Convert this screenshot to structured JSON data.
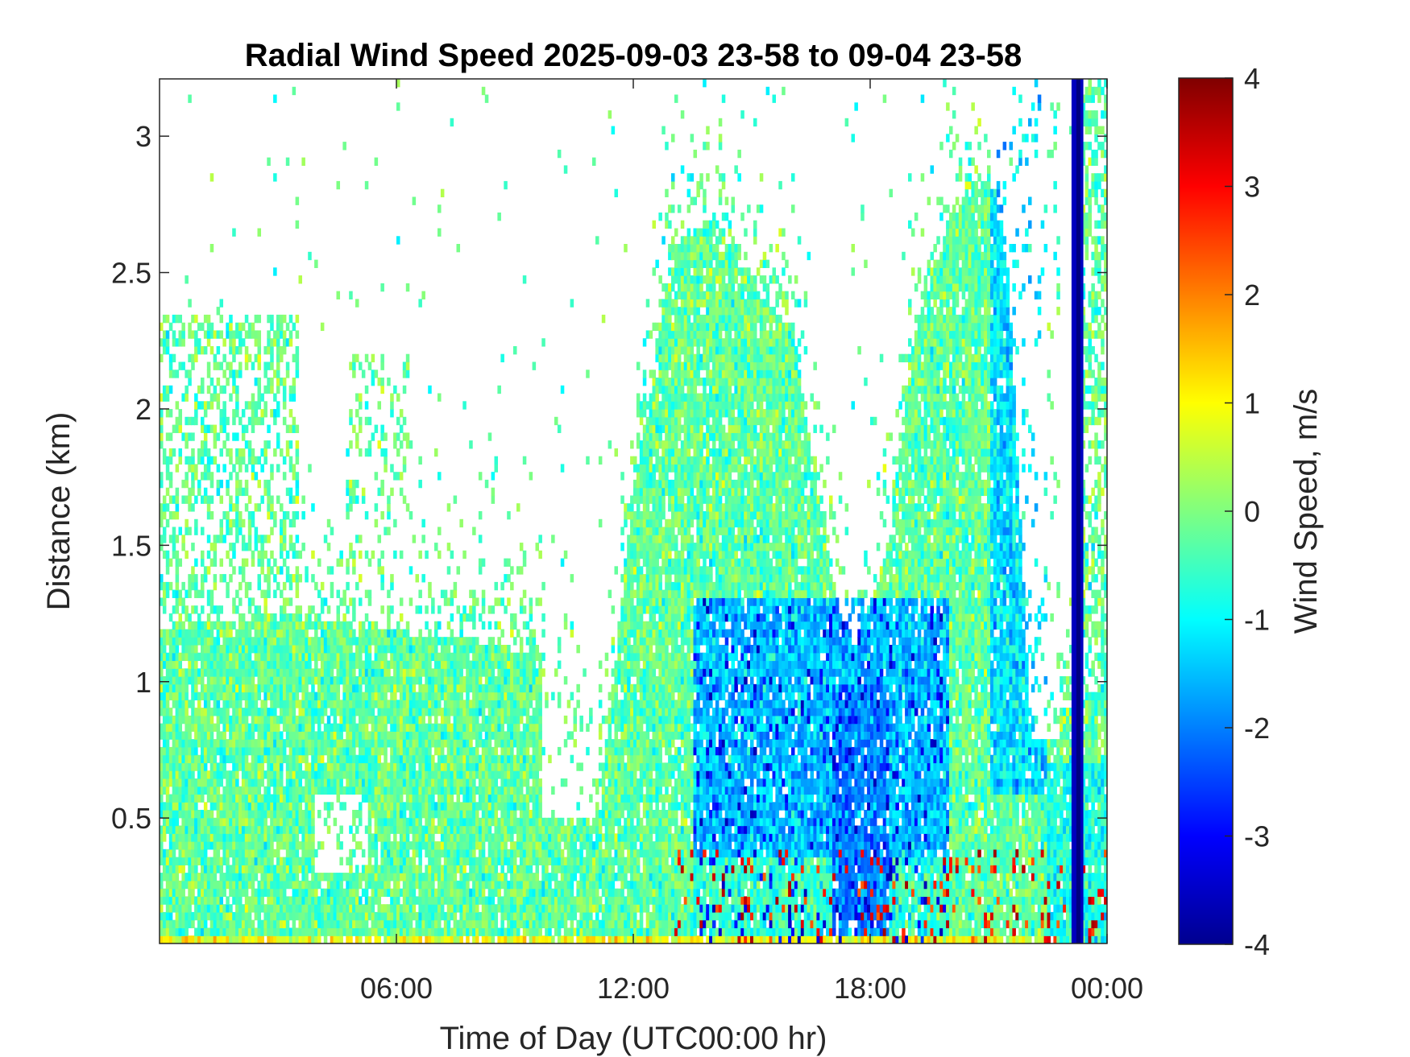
{
  "chart_data": {
    "type": "heatmap",
    "title": "Radial Wind Speed 2025-09-03 23-58 to 09-04 23-58",
    "xlabel": "Time of Day (UTC00:00 hr)",
    "ylabel": "Distance (km)",
    "x_ticks": [
      "06:00",
      "12:00",
      "18:00",
      "00:00"
    ],
    "x_tick_hours": [
      6,
      12,
      18,
      24
    ],
    "xlim_hours": [
      0,
      24
    ],
    "y_ticks": [
      0.5,
      1,
      1.5,
      2,
      2.5,
      3
    ],
    "y_tick_labels": [
      "0.5",
      "1",
      "1.5",
      "2",
      "2.5",
      "3"
    ],
    "ylim_km": [
      0.04,
      3.21
    ],
    "colorbar": {
      "label": "Wind Speed, m/s",
      "ticks": [
        4,
        3,
        2,
        1,
        0,
        -1,
        -2,
        -3,
        -4
      ],
      "tick_labels": [
        "4",
        "3",
        "2",
        "1",
        "0",
        "-1",
        "-2",
        "-3",
        "-4"
      ],
      "range": [
        -4,
        4
      ],
      "colormap": "jet"
    },
    "grid": false,
    "regions": [
      {
        "name": "early low layer",
        "t": [
          0,
          9.5
        ],
        "z_top_km": 1.2,
        "mean_ms": -0.2
      },
      {
        "name": "morning plume",
        "t": [
          0,
          3.5
        ],
        "z_top_km": 2.3,
        "mean_ms": 0.0
      },
      {
        "name": "midday convective plume",
        "t": [
          11.5,
          16.5
        ],
        "z_top_km": 2.7,
        "mean_ms": -0.3
      },
      {
        "name": "afternoon downdraft zone",
        "t": [
          13.5,
          20
        ],
        "z_top_km": 1.3,
        "mean_ms": -1.6
      },
      {
        "name": "evening plume",
        "t": [
          18.5,
          21.5
        ],
        "z_top_km": 2.9,
        "mean_ms": -0.4
      },
      {
        "name": "near-surface updrafts",
        "t": [
          13,
          24
        ],
        "z_top_km": 0.4,
        "mean_ms": 2.0
      },
      {
        "name": "late strong downdraft",
        "t": [
          23.1,
          23.4
        ],
        "z_top_km": 3.21,
        "mean_ms": -3.5
      }
    ]
  }
}
